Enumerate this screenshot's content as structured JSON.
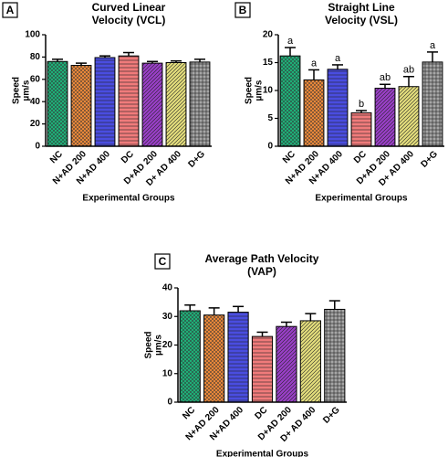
{
  "chart_data": [
    {
      "type": "bar",
      "panel": "A",
      "title": [
        "Curved Linear",
        "Velocity (VCL)"
      ],
      "ylabel": [
        "Speed",
        "µm/s"
      ],
      "xlabel": "Experimental Groups",
      "categories": [
        "NC",
        "N+AD 200",
        "N+AD 400",
        "DC",
        "D+AD 200",
        "D+ AD 400",
        "D+G"
      ],
      "values": [
        76,
        72.5,
        79.5,
        81,
        74.5,
        75,
        75.5
      ],
      "errors": [
        2,
        2,
        1.5,
        3,
        1.5,
        1.5,
        2.5
      ],
      "colors": [
        "#1fae77",
        "#e8873a",
        "#4a4de0",
        "#f07b7b",
        "#9a3fc8",
        "#e3dd7c",
        "#a6a6a6"
      ],
      "ylim": [
        0,
        100
      ],
      "yticks": [
        0,
        20,
        40,
        60,
        80,
        100
      ]
    },
    {
      "type": "bar",
      "panel": "B",
      "title": [
        "Straight Line",
        "Velocity (VSL)"
      ],
      "ylabel": [
        "Speed",
        "µm/s"
      ],
      "xlabel": "Experimental Groups",
      "categories": [
        "NC",
        "N+AD 200",
        "N+AD 400",
        "DC",
        "D+AD 200",
        "D+ AD 400",
        "D+G"
      ],
      "values": [
        16.2,
        11.9,
        13.8,
        6,
        10.4,
        10.7,
        15.1
      ],
      "errors": [
        1.5,
        1.8,
        0.8,
        0.4,
        0.7,
        1.8,
        1.8
      ],
      "annotations": [
        "a",
        "a",
        "a",
        "b",
        "ab",
        "ab",
        "a"
      ],
      "colors": [
        "#1fae77",
        "#e8873a",
        "#4a4de0",
        "#f07b7b",
        "#9a3fc8",
        "#e3dd7c",
        "#a6a6a6"
      ],
      "ylim": [
        0,
        20
      ],
      "yticks": [
        0,
        5,
        10,
        15,
        20
      ]
    },
    {
      "type": "bar",
      "panel": "C",
      "title": [
        "Average Path Velocity",
        "(VAP)"
      ],
      "ylabel": [
        "Speed",
        "µm/s"
      ],
      "xlabel": "Experimental Groups",
      "categories": [
        "NC",
        "N+AD 200",
        "N+AD 400",
        "DC",
        "D+AD 200",
        "D+ AD 400",
        "D+G"
      ],
      "values": [
        32,
        30.5,
        31.5,
        23,
        26.5,
        28.5,
        32.5
      ],
      "errors": [
        2,
        2.5,
        2,
        1.5,
        1.5,
        2.5,
        3
      ],
      "colors": [
        "#1fae77",
        "#e8873a",
        "#4a4de0",
        "#f07b7b",
        "#9a3fc8",
        "#e3dd7c",
        "#a6a6a6"
      ],
      "ylim": [
        0,
        40
      ],
      "yticks": [
        0,
        10,
        20,
        30,
        40
      ]
    }
  ]
}
